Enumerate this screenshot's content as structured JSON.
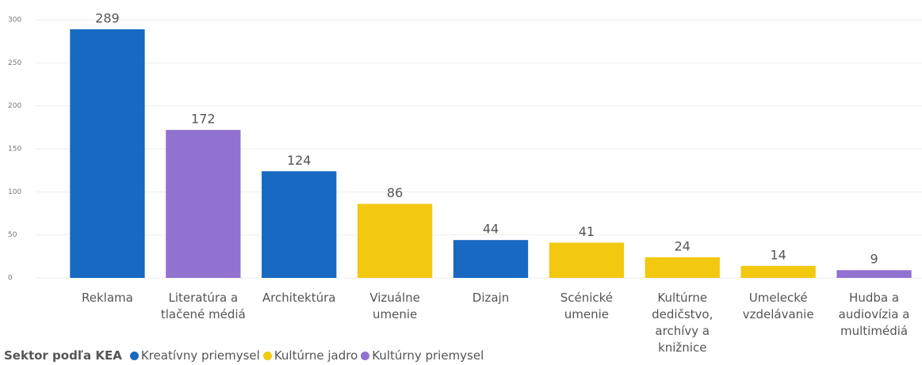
{
  "chart_data": {
    "type": "bar",
    "categories": [
      "Reklama",
      "Literatúra a tlačené médiá",
      "Architektúra",
      "Vizuálne umenie",
      "Dizajn",
      "Scénické umenie",
      "Kultúrne dedičstvo, archívy a knižnice",
      "Umelecké vzdelávanie",
      "Hudba a audiovízia a multimédiá"
    ],
    "series": [
      {
        "name": "Kreatívny priemysel",
        "color": "#1769c2",
        "values": [
          289,
          null,
          124,
          null,
          44,
          null,
          null,
          null,
          null
        ]
      },
      {
        "name": "Kultúrne jadro",
        "color": "#f2c811",
        "values": [
          null,
          null,
          null,
          86,
          null,
          41,
          24,
          14,
          null
        ]
      },
      {
        "name": "Kultúrny priemysel",
        "color": "#9272d0",
        "values": [
          null,
          172,
          null,
          null,
          null,
          null,
          null,
          null,
          9
        ]
      }
    ],
    "legend_title": "Sektor podľa KEA",
    "ylim": [
      0,
      300
    ],
    "yticks": [
      0,
      50,
      100,
      150,
      200,
      250,
      300
    ],
    "grid": true,
    "legend": "bottom-left"
  }
}
